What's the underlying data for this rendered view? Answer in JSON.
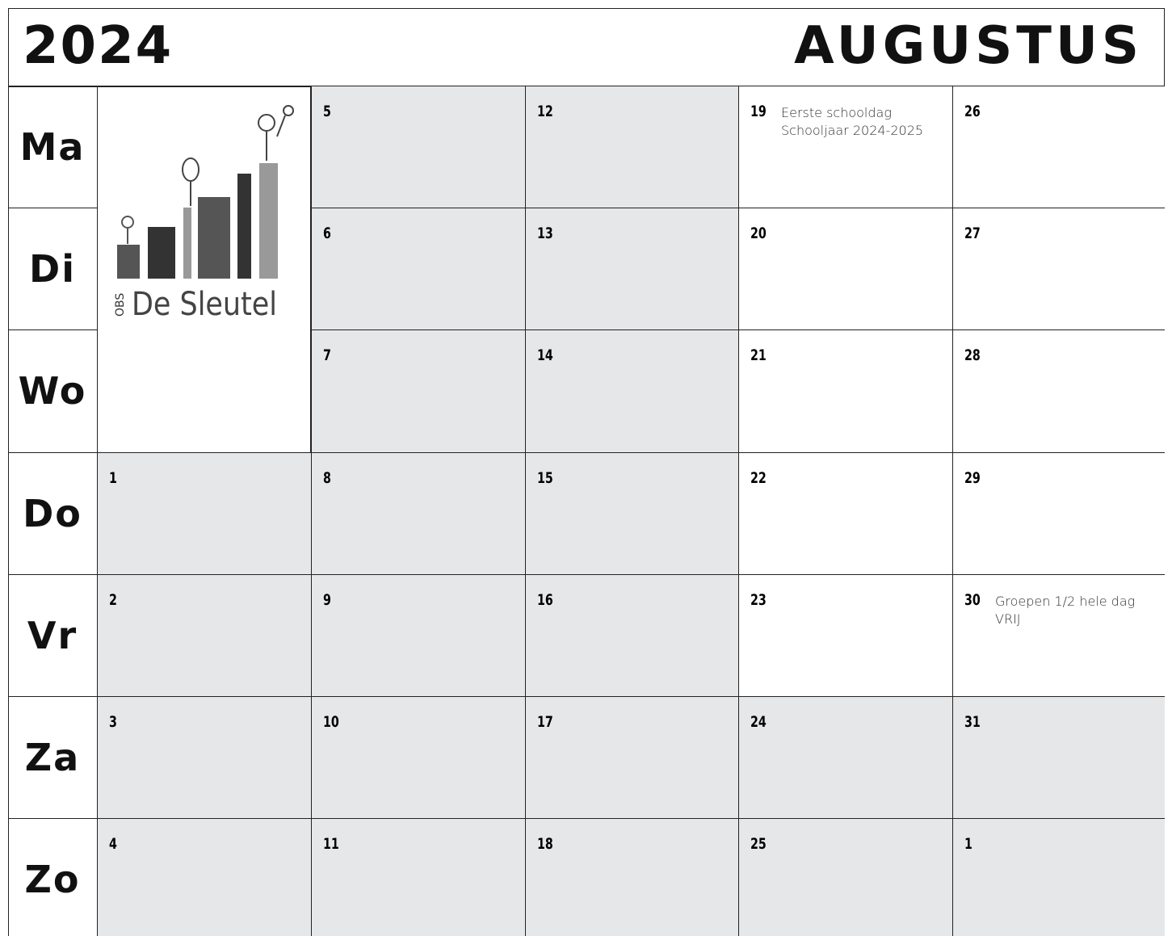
{
  "header": {
    "year": "2024",
    "month": "AUGUSTUS"
  },
  "days": [
    "Ma",
    "Di",
    "Wo",
    "Do",
    "Vr",
    "Za",
    "Zo"
  ],
  "logo": {
    "prefix": "OBS",
    "name": "De Sleutel"
  },
  "weeks": [
    {
      "cells": [
        {
          "day": 1,
          "shaded": true
        },
        {
          "day": 2,
          "shaded": true
        },
        {
          "day": 3,
          "shaded": true
        },
        {
          "day": 4,
          "shaded": true
        }
      ]
    },
    {
      "cells": [
        {
          "day": 5,
          "shaded": true
        },
        {
          "day": 6,
          "shaded": true
        },
        {
          "day": 7,
          "shaded": true
        },
        {
          "day": 8,
          "shaded": true
        },
        {
          "day": 9,
          "shaded": true
        },
        {
          "day": 10,
          "shaded": true
        },
        {
          "day": 11,
          "shaded": true
        }
      ]
    },
    {
      "cells": [
        {
          "day": 12,
          "shaded": true
        },
        {
          "day": 13,
          "shaded": true
        },
        {
          "day": 14,
          "shaded": true
        },
        {
          "day": 15,
          "shaded": true
        },
        {
          "day": 16,
          "shaded": true
        },
        {
          "day": 17,
          "shaded": true
        },
        {
          "day": 18,
          "shaded": true
        }
      ]
    },
    {
      "cells": [
        {
          "day": 19,
          "shaded": false,
          "note": "Eerste schooldag\nSchooljaar 2024-2025"
        },
        {
          "day": 20,
          "shaded": false
        },
        {
          "day": 21,
          "shaded": false
        },
        {
          "day": 22,
          "shaded": false
        },
        {
          "day": 23,
          "shaded": false
        },
        {
          "day": 24,
          "shaded": true
        },
        {
          "day": 25,
          "shaded": true
        }
      ]
    },
    {
      "cells": [
        {
          "day": 26,
          "shaded": false
        },
        {
          "day": 27,
          "shaded": false
        },
        {
          "day": 28,
          "shaded": false
        },
        {
          "day": 29,
          "shaded": false
        },
        {
          "day": 30,
          "shaded": false,
          "note": "Groepen 1/2 hele dag VRIJ"
        },
        {
          "day": 31,
          "shaded": true
        },
        {
          "day": 1,
          "shaded": true
        }
      ]
    }
  ]
}
